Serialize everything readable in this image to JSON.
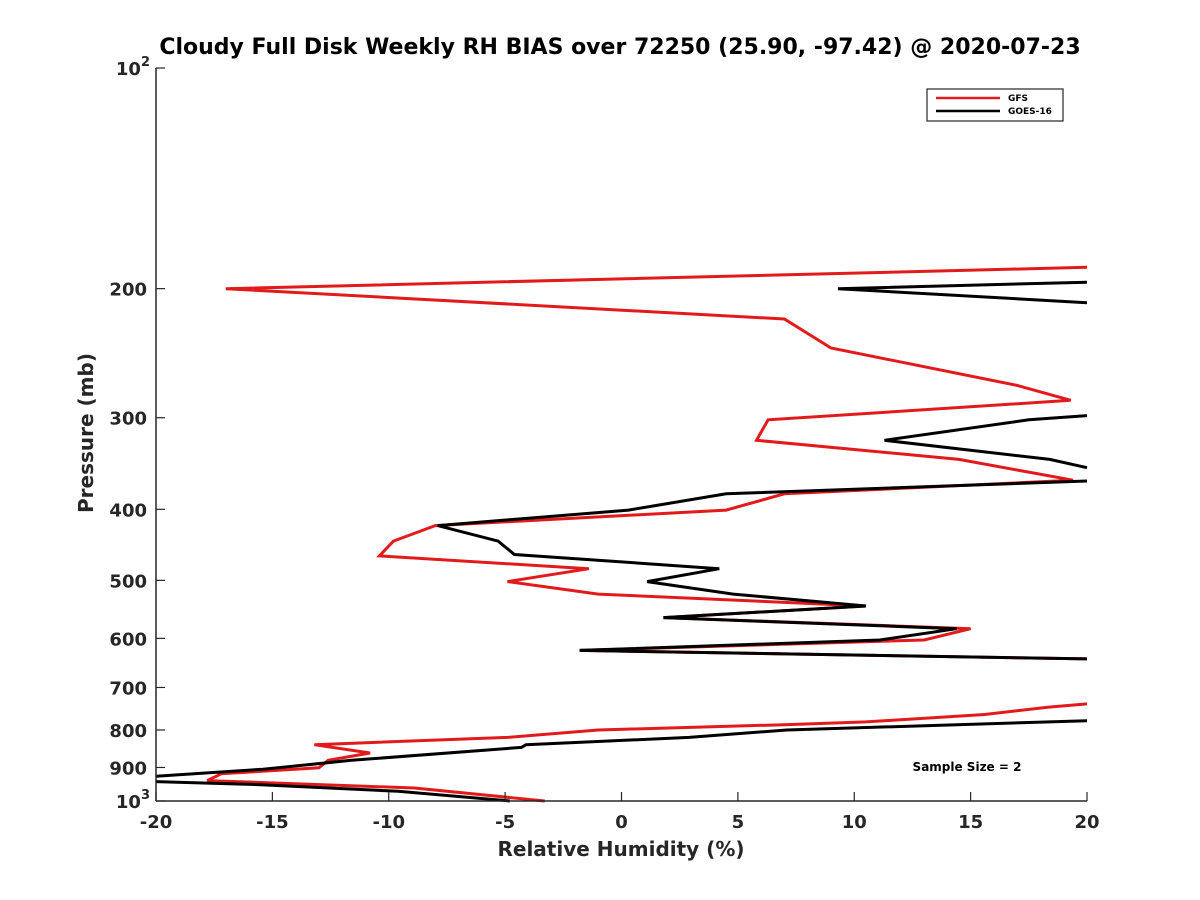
{
  "chart_data": {
    "type": "line",
    "title": "Cloudy Full Disk Weekly RH BIAS over 72250 (25.90, -97.42) @ 2020-07-23",
    "xlabel": "Relative Humidity (%)",
    "ylabel": "Pressure (mb)",
    "xlim": [
      -20,
      20
    ],
    "ylim": [
      100,
      1000
    ],
    "y_scale": "log",
    "y_reversed": true,
    "grid": false,
    "legend_position": "top-right",
    "x_ticks": [
      -20,
      -15,
      -10,
      -5,
      0,
      5,
      10,
      15,
      20
    ],
    "y_ticks": [
      {
        "value": 100,
        "base": "10",
        "exp": "2"
      },
      {
        "value": 200,
        "label": "200"
      },
      {
        "value": 300,
        "label": "300"
      },
      {
        "value": 400,
        "label": "400"
      },
      {
        "value": 500,
        "label": "500"
      },
      {
        "value": 600,
        "label": "600"
      },
      {
        "value": 700,
        "label": "700"
      },
      {
        "value": 800,
        "label": "800"
      },
      {
        "value": 900,
        "label": "900"
      },
      {
        "value": 1000,
        "base": "10",
        "exp": "3"
      }
    ],
    "series": [
      {
        "name": "GFS",
        "color": "#e31a1c",
        "points": [
          [
            20,
            187
          ],
          [
            -17,
            200
          ],
          [
            7,
            220
          ],
          [
            9,
            241
          ],
          [
            17,
            271
          ],
          [
            19.3,
            284
          ],
          [
            6.3,
            302
          ],
          [
            5.8,
            322
          ],
          [
            14.5,
            342
          ],
          [
            19.4,
            365
          ],
          [
            7,
            381
          ],
          [
            4.5,
            401
          ],
          [
            -8,
            421
          ],
          [
            -9.8,
            442
          ],
          [
            -10.4,
            463
          ],
          [
            -1.4,
            482
          ],
          [
            -4.9,
            502
          ],
          [
            -1,
            522
          ],
          [
            10.5,
            542
          ],
          [
            1.8,
            562
          ],
          [
            15,
            582
          ],
          [
            13,
            603
          ],
          [
            -1.8,
            623
          ],
          [
            20,
            640
          ]
        ]
      },
      {
        "name": "GFS",
        "color": "#e31a1c",
        "points": [
          [
            20,
            737
          ],
          [
            18.3,
            745
          ],
          [
            15.6,
            762
          ],
          [
            10.5,
            780
          ],
          [
            7,
            787
          ],
          [
            -1,
            800
          ],
          [
            -4.9,
            819
          ],
          [
            -13.2,
            838
          ],
          [
            -10.8,
            860
          ],
          [
            -12.6,
            880
          ],
          [
            -13,
            901
          ],
          [
            -17.2,
            918
          ],
          [
            -17.8,
            938
          ],
          [
            -8.9,
            960
          ],
          [
            -3.3,
            1000
          ]
        ]
      },
      {
        "name": "GOES-16",
        "color": "#000000",
        "points": [
          [
            20,
            196
          ],
          [
            9.3,
            200
          ],
          [
            20,
            209
          ]
        ]
      },
      {
        "name": "GOES-16",
        "color": "#000000",
        "points": [
          [
            20,
            298
          ],
          [
            17.5,
            302
          ],
          [
            11.3,
            322
          ],
          [
            18.4,
            342
          ],
          [
            20,
            351
          ]
        ]
      },
      {
        "name": "GOES-16",
        "color": "#000000",
        "points": [
          [
            20,
            366
          ],
          [
            4.5,
            381
          ],
          [
            0.3,
            401
          ],
          [
            -7.9,
            421
          ],
          [
            -5.3,
            442
          ],
          [
            -4.6,
            461
          ],
          [
            4.2,
            482
          ],
          [
            1.1,
            502
          ],
          [
            4.8,
            522
          ],
          [
            10.5,
            542
          ],
          [
            1.8,
            562
          ],
          [
            14.4,
            582
          ],
          [
            11.1,
            603
          ],
          [
            -1.8,
            623
          ],
          [
            20,
            640
          ]
        ]
      },
      {
        "name": "GOES-16",
        "color": "#000000",
        "points": [
          [
            20,
            777
          ],
          [
            7.1,
            800
          ],
          [
            2.9,
            819
          ],
          [
            -4.1,
            838
          ],
          [
            -4.3,
            845
          ],
          [
            -11.6,
            880
          ],
          [
            -15.4,
            905
          ],
          [
            -20,
            925
          ]
        ]
      },
      {
        "name": "GOES-16",
        "color": "#000000",
        "points": [
          [
            -20,
            941
          ],
          [
            -15.5,
            950
          ],
          [
            -9.6,
            970
          ],
          [
            -4.8,
            1000
          ]
        ]
      }
    ],
    "legend": [
      {
        "label": "GFS",
        "color": "#e31a1c"
      },
      {
        "label": "GOES-16",
        "color": "#000000"
      }
    ],
    "annotation": "Sample Size = 2"
  }
}
